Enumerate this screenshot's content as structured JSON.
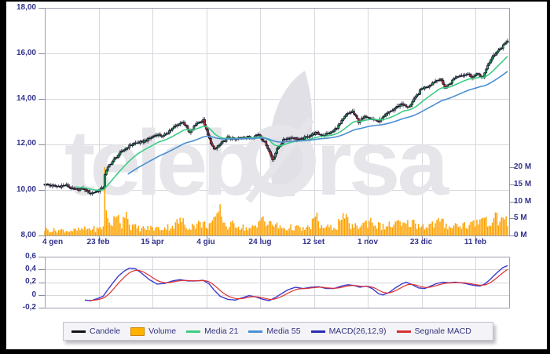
{
  "watermark": {
    "part1": "teleb",
    "part2": "rsa",
    "full": "teleborsa"
  },
  "axes": {
    "price_labels": [
      "18,00",
      "16,00",
      "14,00",
      "12,00",
      "10,00",
      "8,00"
    ],
    "volume_labels": [
      "20 M",
      "15 M",
      "10 M",
      "5 M",
      "0 M"
    ],
    "date_labels": [
      "4 gen",
      "23 feb",
      "15 apr",
      "4 giu",
      "24 lug",
      "12 set",
      "1 nov",
      "23 dic",
      "11 feb"
    ],
    "macd_labels": [
      "0,6",
      "0,4",
      "0,2",
      "0",
      "-0,2"
    ]
  },
  "legend": {
    "items": [
      {
        "label": "Candele",
        "color": "#111118",
        "swatch": "line"
      },
      {
        "label": "Volume",
        "color": "#ffb300",
        "border": "#cc8400",
        "swatch": "box"
      },
      {
        "label": "Media 21",
        "color": "#3ecc85",
        "swatch": "line"
      },
      {
        "label": "Media 55",
        "color": "#4a8fd2",
        "swatch": "line"
      },
      {
        "label": "MACD(26,12,9)",
        "color": "#2a2ab8",
        "swatch": "line"
      },
      {
        "label": "Segnale MACD",
        "color": "#d43030",
        "swatch": "line"
      }
    ]
  },
  "chart_data": {
    "type": "candlestick",
    "x_unit": "trading_day_index",
    "total_days": 302,
    "tick_days": [
      0,
      35,
      70,
      105,
      140,
      175,
      210,
      245,
      280
    ],
    "tick_labels": [
      "4 gen",
      "23 feb",
      "15 apr",
      "4 giu",
      "24 lug",
      "12 set",
      "1 nov",
      "23 dic",
      "11 feb"
    ],
    "price_axis": {
      "min": 8,
      "max": 18,
      "tick_step": 2,
      "decimal_format": "it"
    },
    "volume_axis": {
      "min": 0,
      "max": 20,
      "unit": "M"
    },
    "candle_up_color": "#23a455",
    "candle_down_color": "#b23030",
    "wick_color": "#14142a",
    "volume_color": "#ffa200",
    "close_keyframes": [
      [
        0,
        10.25
      ],
      [
        7,
        10.15
      ],
      [
        14,
        10.2
      ],
      [
        19,
        10.0
      ],
      [
        25,
        10.05
      ],
      [
        30,
        9.85
      ],
      [
        34,
        9.95
      ],
      [
        37,
        10.05
      ],
      [
        38,
        10.1
      ],
      [
        39,
        10.7
      ],
      [
        42,
        11.1
      ],
      [
        48,
        11.55
      ],
      [
        53,
        11.85
      ],
      [
        58,
        12.05
      ],
      [
        63,
        12.1
      ],
      [
        68,
        12.25
      ],
      [
        73,
        12.45
      ],
      [
        77,
        12.35
      ],
      [
        81,
        12.6
      ],
      [
        86,
        12.85
      ],
      [
        90,
        13.0
      ],
      [
        94,
        12.5
      ],
      [
        99,
        12.95
      ],
      [
        103,
        13.05
      ],
      [
        106,
        12.4
      ],
      [
        110,
        11.75
      ],
      [
        114,
        12.0
      ],
      [
        119,
        12.3
      ],
      [
        124,
        12.2
      ],
      [
        129,
        12.35
      ],
      [
        134,
        12.3
      ],
      [
        139,
        12.45
      ],
      [
        144,
        12.0
      ],
      [
        148,
        11.35
      ],
      [
        152,
        11.9
      ],
      [
        156,
        12.25
      ],
      [
        161,
        12.3
      ],
      [
        166,
        12.2
      ],
      [
        171,
        12.35
      ],
      [
        176,
        12.5
      ],
      [
        181,
        12.4
      ],
      [
        187,
        12.55
      ],
      [
        192,
        12.9
      ],
      [
        196,
        13.3
      ],
      [
        200,
        13.45
      ],
      [
        204,
        13.0
      ],
      [
        209,
        13.25
      ],
      [
        214,
        13.1
      ],
      [
        217,
        13.0
      ],
      [
        222,
        13.3
      ],
      [
        227,
        13.55
      ],
      [
        232,
        13.8
      ],
      [
        236,
        13.6
      ],
      [
        240,
        13.95
      ],
      [
        245,
        14.45
      ],
      [
        249,
        14.55
      ],
      [
        253,
        14.75
      ],
      [
        257,
        14.9
      ],
      [
        260,
        14.5
      ],
      [
        263,
        14.65
      ],
      [
        267,
        14.95
      ],
      [
        271,
        15.05
      ],
      [
        275,
        15.1
      ],
      [
        278,
        14.95
      ],
      [
        282,
        15.1
      ],
      [
        285,
        14.9
      ],
      [
        288,
        15.5
      ],
      [
        291,
        15.8
      ],
      [
        294,
        16.1
      ],
      [
        297,
        16.25
      ],
      [
        299,
        16.45
      ],
      [
        301,
        16.5
      ]
    ],
    "volume_keyframes_millions": [
      [
        0,
        1.8
      ],
      [
        5,
        1.5
      ],
      [
        10,
        1.6
      ],
      [
        15,
        1.4
      ],
      [
        20,
        1.5
      ],
      [
        25,
        1.8
      ],
      [
        30,
        2.0
      ],
      [
        35,
        1.8
      ],
      [
        38,
        2.5
      ],
      [
        39,
        20
      ],
      [
        40,
        7
      ],
      [
        42,
        3.5
      ],
      [
        46,
        4.5
      ],
      [
        48,
        6.5
      ],
      [
        50,
        3
      ],
      [
        53,
        7.5
      ],
      [
        55,
        3
      ],
      [
        60,
        2.2
      ],
      [
        65,
        2.0
      ],
      [
        70,
        2.2
      ],
      [
        75,
        2.0
      ],
      [
        80,
        2.5
      ],
      [
        85,
        3.0
      ],
      [
        88,
        5.0
      ],
      [
        92,
        2.5
      ],
      [
        97,
        3.0
      ],
      [
        101,
        3.5
      ],
      [
        105,
        3.0
      ],
      [
        110,
        4.0
      ],
      [
        114,
        8.5
      ],
      [
        116,
        4.0
      ],
      [
        119,
        2.5
      ],
      [
        124,
        3.5
      ],
      [
        128,
        2.5
      ],
      [
        133,
        2.0
      ],
      [
        138,
        2.5
      ],
      [
        142,
        6.5
      ],
      [
        144,
        3.0
      ],
      [
        148,
        3.5
      ],
      [
        152,
        2.5
      ],
      [
        157,
        2.0
      ],
      [
        162,
        2.5
      ],
      [
        167,
        1.8
      ],
      [
        172,
        2.2
      ],
      [
        176,
        5.5
      ],
      [
        180,
        2.5
      ],
      [
        185,
        2.2
      ],
      [
        190,
        2.8
      ],
      [
        194,
        6.0
      ],
      [
        198,
        3.0
      ],
      [
        203,
        2.5
      ],
      [
        208,
        3.5
      ],
      [
        212,
        4.5
      ],
      [
        216,
        3.0
      ],
      [
        220,
        2.5
      ],
      [
        225,
        3.0
      ],
      [
        230,
        3.5
      ],
      [
        234,
        2.8
      ],
      [
        238,
        4.0
      ],
      [
        243,
        3.0
      ],
      [
        248,
        2.8
      ],
      [
        252,
        3.2
      ],
      [
        257,
        4.0
      ],
      [
        261,
        3.0
      ],
      [
        265,
        2.8
      ],
      [
        270,
        3.2
      ],
      [
        275,
        3.0
      ],
      [
        279,
        3.5
      ],
      [
        283,
        4.5
      ],
      [
        286,
        5.5
      ],
      [
        289,
        4.0
      ],
      [
        292,
        5.0
      ],
      [
        295,
        4.5
      ],
      [
        298,
        5.5
      ],
      [
        301,
        4.0
      ]
    ],
    "overlays": [
      {
        "name": "Media 21",
        "period": 21,
        "color": "#3ecc85"
      },
      {
        "name": "Media 55",
        "period": 55,
        "color": "#4a8fd2"
      }
    ],
    "macd": {
      "params": "26,12,9",
      "range": [
        -0.2,
        0.6
      ],
      "line_color": "#3a3ad0",
      "signal_color": "#e03030",
      "signal_ema_period": 9,
      "keyframes": [
        [
          26,
          -0.08
        ],
        [
          30,
          -0.09
        ],
        [
          34,
          -0.06
        ],
        [
          38,
          -0.02
        ],
        [
          40,
          0.05
        ],
        [
          44,
          0.18
        ],
        [
          48,
          0.3
        ],
        [
          52,
          0.38
        ],
        [
          55,
          0.42
        ],
        [
          59,
          0.41
        ],
        [
          63,
          0.34
        ],
        [
          68,
          0.24
        ],
        [
          73,
          0.17
        ],
        [
          78,
          0.18
        ],
        [
          83,
          0.22
        ],
        [
          88,
          0.24
        ],
        [
          93,
          0.22
        ],
        [
          98,
          0.22
        ],
        [
          103,
          0.23
        ],
        [
          107,
          0.17
        ],
        [
          110,
          0.08
        ],
        [
          114,
          -0.02
        ],
        [
          119,
          -0.07
        ],
        [
          124,
          -0.08
        ],
        [
          129,
          -0.04
        ],
        [
          133,
          -0.01
        ],
        [
          137,
          -0.03
        ],
        [
          142,
          -0.07
        ],
        [
          146,
          -0.09
        ],
        [
          150,
          -0.04
        ],
        [
          154,
          0.02
        ],
        [
          158,
          0.08
        ],
        [
          163,
          0.12
        ],
        [
          168,
          0.1
        ],
        [
          173,
          0.12
        ],
        [
          178,
          0.13
        ],
        [
          183,
          0.1
        ],
        [
          188,
          0.1
        ],
        [
          193,
          0.14
        ],
        [
          197,
          0.16
        ],
        [
          201,
          0.15
        ],
        [
          205,
          0.12
        ],
        [
          209,
          0.14
        ],
        [
          213,
          0.1
        ],
        [
          217,
          0.02
        ],
        [
          220,
          0.0
        ],
        [
          224,
          0.04
        ],
        [
          228,
          0.11
        ],
        [
          232,
          0.17
        ],
        [
          235,
          0.2
        ],
        [
          239,
          0.16
        ],
        [
          243,
          0.11
        ],
        [
          247,
          0.1
        ],
        [
          251,
          0.14
        ],
        [
          255,
          0.18
        ],
        [
          259,
          0.2
        ],
        [
          263,
          0.19
        ],
        [
          267,
          0.2
        ],
        [
          271,
          0.19
        ],
        [
          275,
          0.17
        ],
        [
          279,
          0.15
        ],
        [
          283,
          0.14
        ],
        [
          286,
          0.17
        ],
        [
          289,
          0.23
        ],
        [
          292,
          0.3
        ],
        [
          295,
          0.37
        ],
        [
          298,
          0.43
        ],
        [
          301,
          0.46
        ]
      ]
    }
  }
}
